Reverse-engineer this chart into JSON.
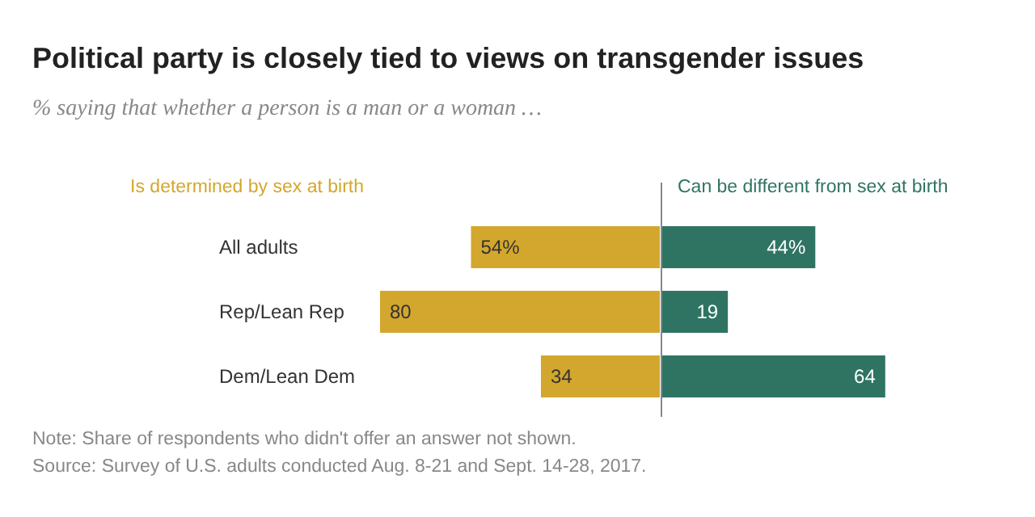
{
  "chart_data": [
    {
      "type": "bar",
      "orientation": "horizontal",
      "title": "Political party is closely tied to views on transgender issues",
      "subtitle": "% saying that whether a person is a man or a woman …",
      "categories": [
        "All adults",
        "Rep/Lean Rep",
        "Dem/Lean Dem"
      ],
      "xlim": [
        80,
        0
      ],
      "tick_labels": "y",
      "series": [
        {
          "name": "Is determined by sex at birth",
          "color": "#d3a72e",
          "values": [
            54,
            80,
            34
          ],
          "value_labels": [
            "54%",
            "80",
            "34"
          ]
        }
      ]
    },
    {
      "type": "bar",
      "orientation": "horizontal",
      "categories": [
        "All adults",
        "Rep/Lean Rep",
        "Dem/Lean Dem"
      ],
      "tick_labels": false,
      "series": [
        {
          "name": "Can be different from sex at birth",
          "color": "#2f7462",
          "values": [
            44,
            19,
            64
          ],
          "value_labels": [
            "44%",
            "19",
            "64"
          ]
        }
      ],
      "annotations": [
        "Note: Share of respondents who didn't offer an answer not shown.",
        "Source: Survey of U.S. adults conducted Aug. 8-21 and Sept. 14-28, 2017."
      ]
    }
  ]
}
